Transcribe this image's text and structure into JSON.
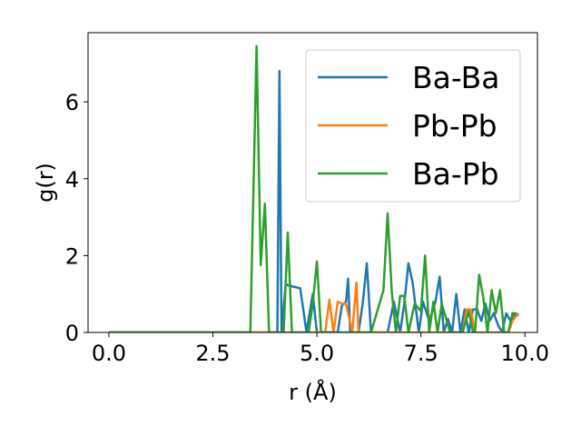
{
  "chart_data": {
    "type": "line",
    "title": "",
    "xlabel": "r (Å)",
    "ylabel": "g(r)",
    "xlim": [
      -0.5,
      10.3
    ],
    "ylim": [
      0,
      7.8
    ],
    "xticks": [
      0.0,
      2.5,
      5.0,
      7.5,
      10.0
    ],
    "xtick_labels": [
      "0.0",
      "2.5",
      "5.0",
      "7.5",
      "10.0"
    ],
    "yticks": [
      0,
      2,
      4,
      6
    ],
    "ytick_labels": [
      "0",
      "2",
      "4",
      "6"
    ],
    "grid": false,
    "legend_position": "top-right",
    "series": [
      {
        "name": "Ba-Ba",
        "color": "#1f77b4",
        "x": [
          0.0,
          3.95,
          4.05,
          4.1,
          4.15,
          4.25,
          4.4,
          4.6,
          4.75,
          4.9,
          5.0,
          5.5,
          5.6,
          5.7,
          5.75,
          5.8,
          6.0,
          6.1,
          6.2,
          6.3,
          6.5,
          6.7,
          6.85,
          7.0,
          7.1,
          7.2,
          7.3,
          7.45,
          7.55,
          7.7,
          7.85,
          7.95,
          8.05,
          8.15,
          8.25,
          8.35,
          8.45,
          8.55,
          8.65,
          8.75,
          8.85,
          8.95,
          9.05,
          9.15,
          9.25,
          9.35,
          9.45,
          9.55,
          9.65,
          9.75,
          9.85
        ],
        "values": [
          0,
          0,
          0,
          6.8,
          0,
          1.25,
          1.2,
          1.15,
          0,
          1.0,
          0,
          0,
          0.7,
          0.8,
          1.4,
          0,
          0,
          0.75,
          1.8,
          0,
          0,
          0,
          0.8,
          0,
          0.75,
          1.8,
          1.3,
          0,
          0.8,
          0.3,
          0.8,
          1.45,
          0,
          0.35,
          0,
          1.0,
          0,
          0.6,
          0,
          0.6,
          0.6,
          0.3,
          0.75,
          0.3,
          0.5,
          0.2,
          0,
          0.5,
          0.3,
          0.45,
          0.45
        ]
      },
      {
        "name": "Pb-Pb",
        "color": "#ff7f0e",
        "x": [
          0.0,
          5.2,
          5.3,
          5.4,
          5.5,
          5.6,
          5.7,
          5.85,
          5.95,
          6.0,
          6.1,
          8.35,
          8.5,
          8.6,
          8.7,
          8.8,
          9.6,
          9.7,
          9.8,
          9.85
        ],
        "values": [
          0,
          0,
          0.85,
          0,
          0.8,
          0.75,
          0.75,
          0,
          1.3,
          0,
          0,
          0,
          0,
          0.6,
          0.6,
          0,
          0,
          0.3,
          0.45,
          0.5
        ]
      },
      {
        "name": "Ba-Pb",
        "color": "#2ca02c",
        "x": [
          0.0,
          3.4,
          3.55,
          3.65,
          3.75,
          3.85,
          4.2,
          4.3,
          4.4,
          4.8,
          4.9,
          5.0,
          5.1,
          5.2,
          6.3,
          6.6,
          6.7,
          6.8,
          6.9,
          7.0,
          7.1,
          7.2,
          7.35,
          7.5,
          7.6,
          7.7,
          7.8,
          7.9,
          8.0,
          8.2,
          8.5,
          8.65,
          8.75,
          8.8,
          8.9,
          9.0,
          9.1,
          9.2,
          9.3,
          9.4,
          9.5,
          9.6,
          9.7,
          9.8
        ],
        "values": [
          0,
          0,
          7.45,
          1.75,
          3.35,
          0,
          0,
          2.6,
          0,
          0,
          0.75,
          1.85,
          0,
          0,
          0,
          1.1,
          3.1,
          1.05,
          0,
          0.95,
          0.95,
          0,
          0.75,
          0.55,
          2.0,
          0,
          0.8,
          0,
          0.75,
          0,
          0,
          0.55,
          0,
          0,
          1.5,
          0.9,
          0,
          1.1,
          0.5,
          1.1,
          0,
          0,
          0.5,
          0.5
        ]
      }
    ]
  }
}
